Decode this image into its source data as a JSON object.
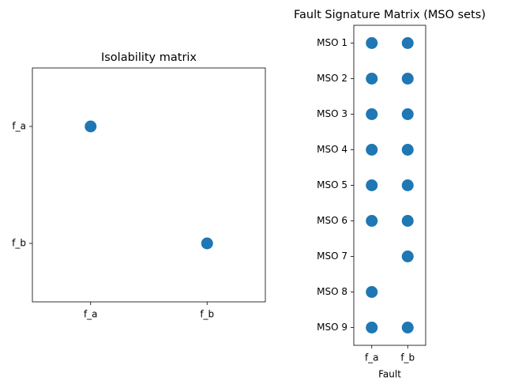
{
  "chart_data": [
    {
      "type": "matrix",
      "title": "Isolability matrix",
      "color": "#1f77b4",
      "x_categories": [
        "f_a",
        "f_b"
      ],
      "y_categories": [
        "f_a",
        "f_b"
      ],
      "values": [
        [
          1,
          0
        ],
        [
          0,
          1
        ]
      ]
    },
    {
      "type": "matrix",
      "title": "Fault Signature Matrix (MSO sets)",
      "xlabel": "Fault",
      "color": "#1f77b4",
      "x_categories": [
        "f_a",
        "f_b"
      ],
      "y_categories": [
        "MSO 1",
        "MSO 2",
        "MSO 3",
        "MSO 4",
        "MSO 5",
        "MSO 6",
        "MSO 7",
        "MSO 8",
        "MSO 9"
      ],
      "values": [
        [
          1,
          1
        ],
        [
          1,
          1
        ],
        [
          1,
          1
        ],
        [
          1,
          1
        ],
        [
          1,
          1
        ],
        [
          1,
          1
        ],
        [
          0,
          1
        ],
        [
          1,
          0
        ],
        [
          1,
          1
        ]
      ]
    }
  ]
}
